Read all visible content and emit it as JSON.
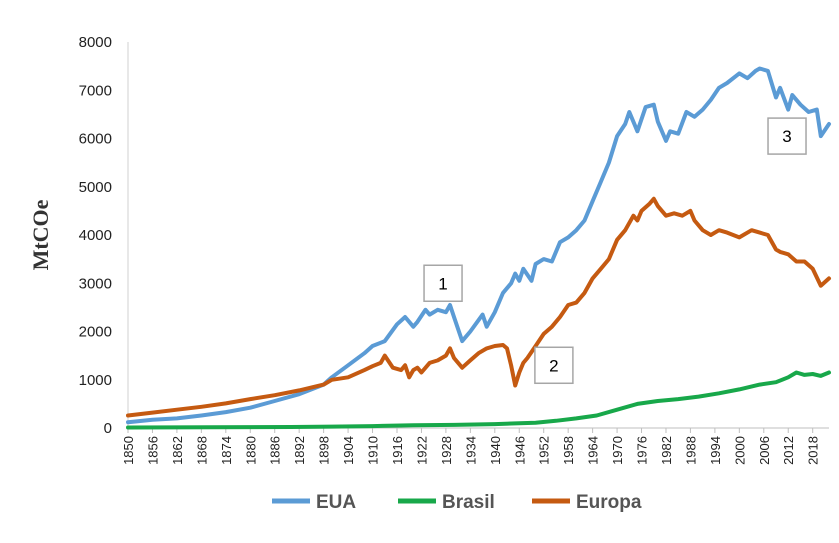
{
  "chart_data": {
    "type": "line",
    "title": "",
    "xlabel": "",
    "ylabel": "MtCOe",
    "xlim": [
      1850,
      2022
    ],
    "ylim": [
      0,
      8000
    ],
    "y_ticks": [
      "0",
      "1000",
      "2000",
      "3000",
      "4000",
      "5000",
      "6000",
      "7000",
      "8000"
    ],
    "x_ticks": [
      "1850",
      "1856",
      "1862",
      "1868",
      "1874",
      "1880",
      "1886",
      "1892",
      "1898",
      "1904",
      "1910",
      "1916",
      "1922",
      "1928",
      "1934",
      "1940",
      "1946",
      "1952",
      "1958",
      "1964",
      "1970",
      "1976",
      "1982",
      "1988",
      "1994",
      "2000",
      "2006",
      "2012",
      "2018"
    ],
    "grid": false,
    "legend_position": "bottom",
    "series": [
      {
        "name": "EUA",
        "color": "#5b9bd5",
        "x": [
          1850,
          1856,
          1862,
          1868,
          1874,
          1880,
          1886,
          1892,
          1898,
          1900,
          1904,
          1908,
          1910,
          1913,
          1916,
          1918,
          1920,
          1921,
          1923,
          1924,
          1926,
          1928,
          1929,
          1930,
          1932,
          1934,
          1937,
          1938,
          1940,
          1942,
          1944,
          1945,
          1946,
          1947,
          1949,
          1950,
          1952,
          1954,
          1956,
          1958,
          1960,
          1962,
          1964,
          1966,
          1968,
          1970,
          1972,
          1973,
          1975,
          1977,
          1979,
          1980,
          1982,
          1983,
          1985,
          1987,
          1989,
          1991,
          1993,
          1995,
          1997,
          2000,
          2002,
          2004,
          2005,
          2007,
          2009,
          2010,
          2012,
          2013,
          2015,
          2017,
          2019,
          2020,
          2022
        ],
        "values": [
          120,
          170,
          200,
          260,
          330,
          420,
          560,
          700,
          900,
          1050,
          1300,
          1550,
          1700,
          1800,
          2150,
          2300,
          2100,
          2200,
          2450,
          2350,
          2450,
          2400,
          2550,
          2300,
          1800,
          2000,
          2350,
          2100,
          2400,
          2800,
          3000,
          3200,
          3050,
          3300,
          3050,
          3400,
          3500,
          3450,
          3850,
          3950,
          4100,
          4300,
          4700,
          5100,
          5500,
          6050,
          6300,
          6550,
          6150,
          6650,
          6700,
          6350,
          5950,
          6150,
          6100,
          6550,
          6450,
          6600,
          6800,
          7050,
          7150,
          7350,
          7250,
          7400,
          7450,
          7400,
          6850,
          7050,
          6600,
          6900,
          6700,
          6550,
          6600,
          6050,
          6300
        ]
      },
      {
        "name": "Brasil",
        "color": "#18a84a",
        "x": [
          1850,
          1870,
          1890,
          1900,
          1910,
          1920,
          1930,
          1940,
          1945,
          1950,
          1955,
          1960,
          1965,
          1970,
          1975,
          1980,
          1985,
          1990,
          1995,
          2000,
          2005,
          2009,
          2012,
          2014,
          2016,
          2018,
          2020,
          2022
        ],
        "values": [
          10,
          15,
          20,
          30,
          40,
          55,
          65,
          80,
          95,
          110,
          150,
          200,
          260,
          380,
          500,
          560,
          600,
          650,
          720,
          800,
          900,
          950,
          1050,
          1150,
          1100,
          1120,
          1080,
          1150
        ]
      },
      {
        "name": "Europa",
        "color": "#c55a11",
        "x": [
          1850,
          1856,
          1862,
          1868,
          1874,
          1880,
          1886,
          1892,
          1898,
          1900,
          1904,
          1908,
          1910,
          1912,
          1913,
          1915,
          1917,
          1918,
          1919,
          1920,
          1921,
          1922,
          1924,
          1926,
          1928,
          1929,
          1930,
          1932,
          1934,
          1936,
          1938,
          1940,
          1942,
          1943,
          1944,
          1945,
          1946,
          1947,
          1948,
          1950,
          1952,
          1954,
          1956,
          1958,
          1960,
          1962,
          1964,
          1966,
          1968,
          1970,
          1972,
          1974,
          1975,
          1976,
          1978,
          1979,
          1980,
          1982,
          1984,
          1986,
          1988,
          1989,
          1991,
          1993,
          1995,
          1997,
          2000,
          2003,
          2005,
          2007,
          2009,
          2010,
          2012,
          2014,
          2016,
          2018,
          2020,
          2022
        ],
        "values": [
          260,
          320,
          380,
          440,
          510,
          600,
          680,
          780,
          900,
          1000,
          1050,
          1200,
          1280,
          1350,
          1500,
          1250,
          1200,
          1300,
          1050,
          1200,
          1250,
          1150,
          1350,
          1400,
          1500,
          1650,
          1450,
          1250,
          1400,
          1550,
          1650,
          1700,
          1720,
          1650,
          1300,
          880,
          1150,
          1350,
          1450,
          1700,
          1950,
          2100,
          2300,
          2550,
          2600,
          2800,
          3100,
          3300,
          3500,
          3900,
          4100,
          4400,
          4300,
          4500,
          4650,
          4750,
          4600,
          4400,
          4450,
          4400,
          4500,
          4300,
          4100,
          4000,
          4100,
          4050,
          3950,
          4100,
          4050,
          4000,
          3700,
          3650,
          3600,
          3450,
          3450,
          3300,
          2950,
          3100
        ]
      }
    ],
    "annotations": [
      {
        "label": "1",
        "x": 1927.3,
        "y": 3000
      },
      {
        "label": "2",
        "x": 1954.5,
        "y": 1300
      },
      {
        "label": "3",
        "x": 2011.7,
        "y": 6050
      }
    ]
  }
}
